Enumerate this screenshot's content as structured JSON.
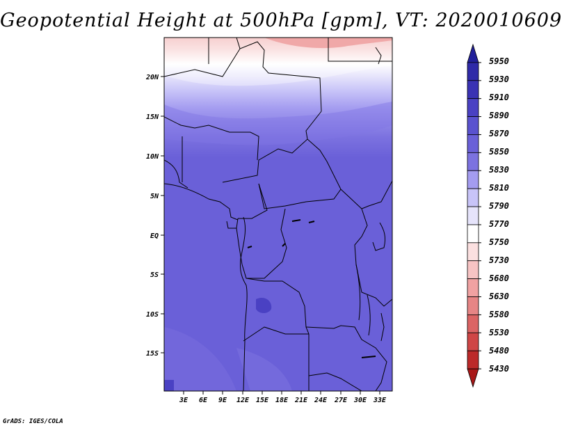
{
  "title": "Geopotential Height at 500hPa [gpm], VT: 2020010609",
  "credit": "GrADS: IGES/COLA",
  "map": {
    "lat_ticks": [
      "20N",
      "15N",
      "10N",
      "5N",
      "EQ",
      "5S",
      "10S",
      "15S"
    ],
    "lon_ticks": [
      "3E",
      "6E",
      "9E",
      "12E",
      "15E",
      "18E",
      "21E",
      "24E",
      "27E",
      "30E",
      "33E"
    ]
  },
  "colorbar": {
    "levels": [
      "5950",
      "5930",
      "5910",
      "5890",
      "5870",
      "5850",
      "5830",
      "5810",
      "5790",
      "5770",
      "5750",
      "5730",
      "5680",
      "5630",
      "5580",
      "5530",
      "5480",
      "5430"
    ],
    "colors": [
      "#22209a",
      "#2f2aa8",
      "#3a32b4",
      "#4a41c3",
      "#5a52cf",
      "#6a60d8",
      "#7c72e0",
      "#a49cf0",
      "#c8c4f8",
      "#e6e4fb",
      "#ffffff",
      "#fbe0e0",
      "#f7c4c4",
      "#f0a2a2",
      "#e68585",
      "#db6464",
      "#cf4646",
      "#bc2a2a",
      "#a81818"
    ]
  }
}
